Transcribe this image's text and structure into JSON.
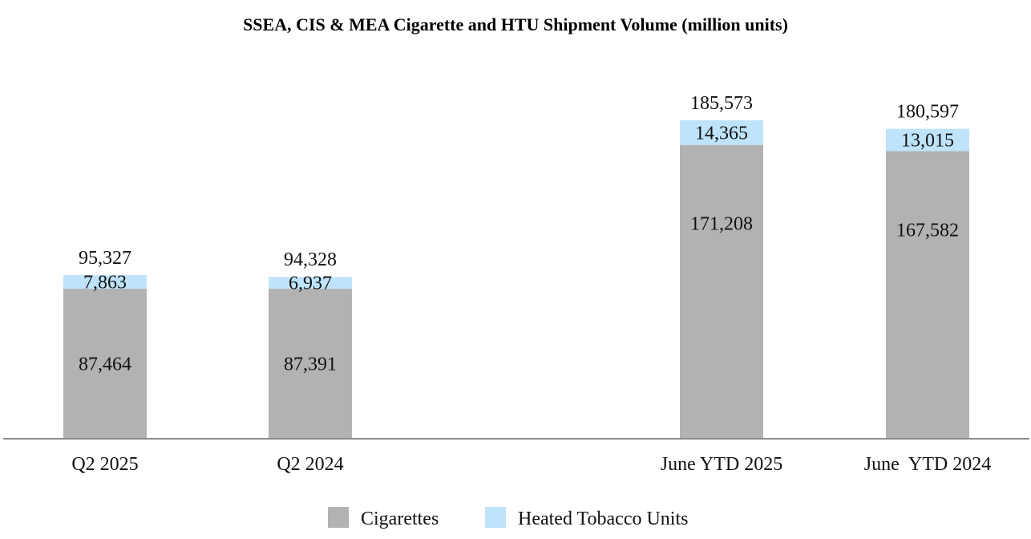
{
  "chart_data": {
    "type": "bar",
    "stacked": true,
    "title": "SSEA, CIS & MEA Cigarette and HTU Shipment Volume (million units)",
    "categories": [
      "Q2 2025",
      "Q2 2024",
      "June YTD 2025",
      "June  YTD 2024"
    ],
    "series": [
      {
        "name": "Cigarettes",
        "color": "#b2b2b2",
        "values": [
          87464,
          87391,
          171208,
          167582
        ],
        "labels": [
          "87,464",
          "87,391",
          "171,208",
          "167,582"
        ]
      },
      {
        "name": "Heated Tobacco Units",
        "color": "#bfe3fb",
        "values": [
          7863,
          6937,
          14365,
          13015
        ],
        "labels": [
          "7,863",
          "6,937",
          "14,365",
          "13,015"
        ]
      }
    ],
    "totals": [
      95327,
      94328,
      185573,
      180597
    ],
    "total_labels": [
      "95,327",
      "94,328",
      "185,573",
      "180,597"
    ],
    "xlabel": "",
    "ylabel": "",
    "ylim": [
      0,
      200000
    ],
    "grid": false,
    "legend_position": "bottom-center"
  }
}
